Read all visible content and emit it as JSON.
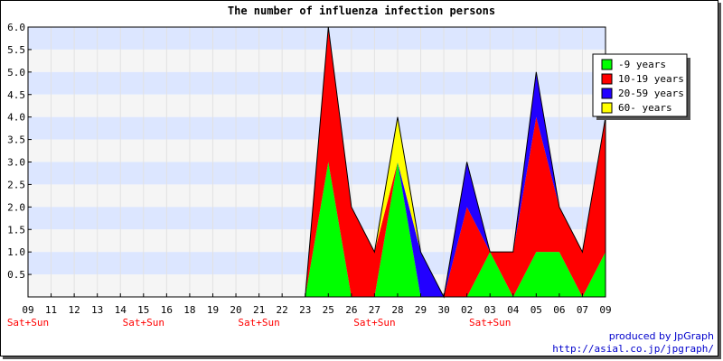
{
  "chart_data": {
    "type": "area",
    "stacked": true,
    "title": "The number of influenza infection persons",
    "xlabel": "",
    "ylabel": "",
    "ylim": [
      0,
      6
    ],
    "y_tick_labels": [
      "0.5",
      "1.0",
      "1.5",
      "2.0",
      "2.5",
      "3.0",
      "3.5",
      "4.0",
      "4.5",
      "5.0",
      "5.5",
      "6.0"
    ],
    "grid": "horizontal bands and vertical gridlines",
    "legend_position": "top-right",
    "categories": [
      "09",
      "11",
      "12",
      "13",
      "14",
      "15",
      "16",
      "18",
      "19",
      "20",
      "21",
      "22",
      "23",
      "25",
      "26",
      "27",
      "28",
      "29",
      "30",
      "02",
      "03",
      "04",
      "05",
      "06",
      "07",
      "09"
    ],
    "weekend_label": "Sat+Sun",
    "weekend_positions": [
      0,
      5,
      10,
      15,
      20
    ],
    "series": [
      {
        "name": "-9 years",
        "color": "#00ff00",
        "values": [
          0,
          0,
          0,
          0,
          0,
          0,
          0,
          0,
          0,
          0,
          0,
          0,
          0,
          3,
          0,
          0,
          3,
          0,
          0,
          0,
          1,
          0,
          1,
          1,
          0,
          1
        ]
      },
      {
        "name": "10-19 years",
        "color": "#ff0000",
        "values": [
          0,
          0,
          0,
          0,
          0,
          0,
          0,
          0,
          0,
          0,
          0,
          0,
          0,
          3,
          2,
          1,
          0,
          0,
          0,
          2,
          0,
          1,
          3,
          1,
          1,
          3
        ]
      },
      {
        "name": "20-59 years",
        "color": "#2200ff",
        "values": [
          0,
          0,
          0,
          0,
          0,
          0,
          0,
          0,
          0,
          0,
          0,
          0,
          0,
          0,
          0,
          0,
          0,
          1,
          0,
          1,
          0,
          0,
          1,
          0,
          0,
          0
        ]
      },
      {
        "name": "60- years",
        "color": "#ffff00",
        "values": [
          0,
          0,
          0,
          0,
          0,
          0,
          0,
          0,
          0,
          0,
          0,
          0,
          0,
          0,
          0,
          0,
          1,
          0,
          0,
          0,
          0,
          0,
          0,
          0,
          0,
          0
        ]
      }
    ]
  },
  "footer": {
    "credit": "produced by JpGraph",
    "url": "http://asial.co.jp/jpgraph/"
  },
  "colors": {
    "band_blue": "#dce6ff",
    "band_gray": "#f5f5f5",
    "weekend_text": "#ff0000",
    "footer_text": "#0000cc"
  }
}
